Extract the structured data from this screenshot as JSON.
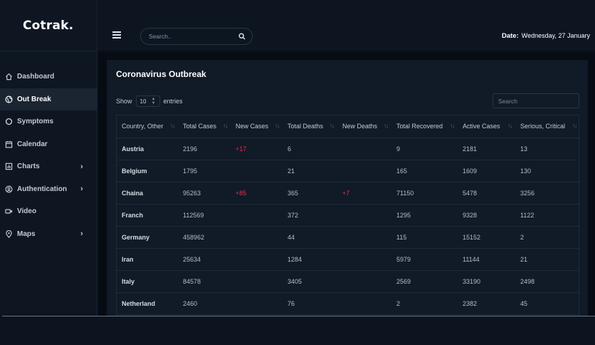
{
  "app": {
    "logo": "Cotrak."
  },
  "sidebar": {
    "items": [
      {
        "label": "Dashboard",
        "icon": "home-icon",
        "active": false,
        "has_children": false
      },
      {
        "label": "Out Break",
        "icon": "globe-icon",
        "active": true,
        "has_children": false
      },
      {
        "label": "Symptoms",
        "icon": "circle-icon",
        "active": false,
        "has_children": false
      },
      {
        "label": "Calendar",
        "icon": "calendar-icon",
        "active": false,
        "has_children": false
      },
      {
        "label": "Charts",
        "icon": "chart-icon",
        "active": false,
        "has_children": true
      },
      {
        "label": "Authentication",
        "icon": "user-icon",
        "active": false,
        "has_children": true
      },
      {
        "label": "Video",
        "icon": "video-icon",
        "active": false,
        "has_children": false
      },
      {
        "label": "Maps",
        "icon": "map-pin-icon",
        "active": false,
        "has_children": true
      }
    ],
    "chevron": "›"
  },
  "header": {
    "search_placeholder": "Search..",
    "date_label": "Date:",
    "date_value": "Wednesday, 27 January"
  },
  "card": {
    "title": "Coronavirus Outbreak",
    "show_label": "Show",
    "entries_value": "10",
    "entries_label": "entries",
    "search_placeholder": "Search"
  },
  "table": {
    "columns": [
      "Country, Other",
      "Total Cases",
      "New Cases",
      "Total Deaths",
      "New Deaths",
      "Total Recovered",
      "Active Cases",
      "Serious, Critical"
    ],
    "sort_glyph": "↑↓",
    "rows": [
      [
        "Austria",
        "2196",
        "+17",
        "6",
        "",
        "9",
        "2181",
        "13"
      ],
      [
        "Belgium",
        "1795",
        "",
        "21",
        "",
        "165",
        "1609",
        "130"
      ],
      [
        "Chaina",
        "95263",
        "+85",
        "365",
        "+7",
        "71150",
        "5478",
        "3256"
      ],
      [
        "Franch",
        "112569",
        "",
        "372",
        "",
        "1295",
        "9328",
        "1122"
      ],
      [
        "Germany",
        "458962",
        "",
        "44",
        "",
        "115",
        "15152",
        "2"
      ],
      [
        "Iran",
        "25634",
        "",
        "1284",
        "",
        "5979",
        "11144",
        "21"
      ],
      [
        "Italy",
        "84578",
        "",
        "3405",
        "",
        "2569",
        "33190",
        "2498"
      ],
      [
        "Netherland",
        "2460",
        "",
        "76",
        "",
        "2",
        "2382",
        "45"
      ]
    ]
  },
  "colors": {
    "background": "#0c1420",
    "card": "#111a27",
    "increase": "#e0304a",
    "active_nav": "#1b2431"
  }
}
